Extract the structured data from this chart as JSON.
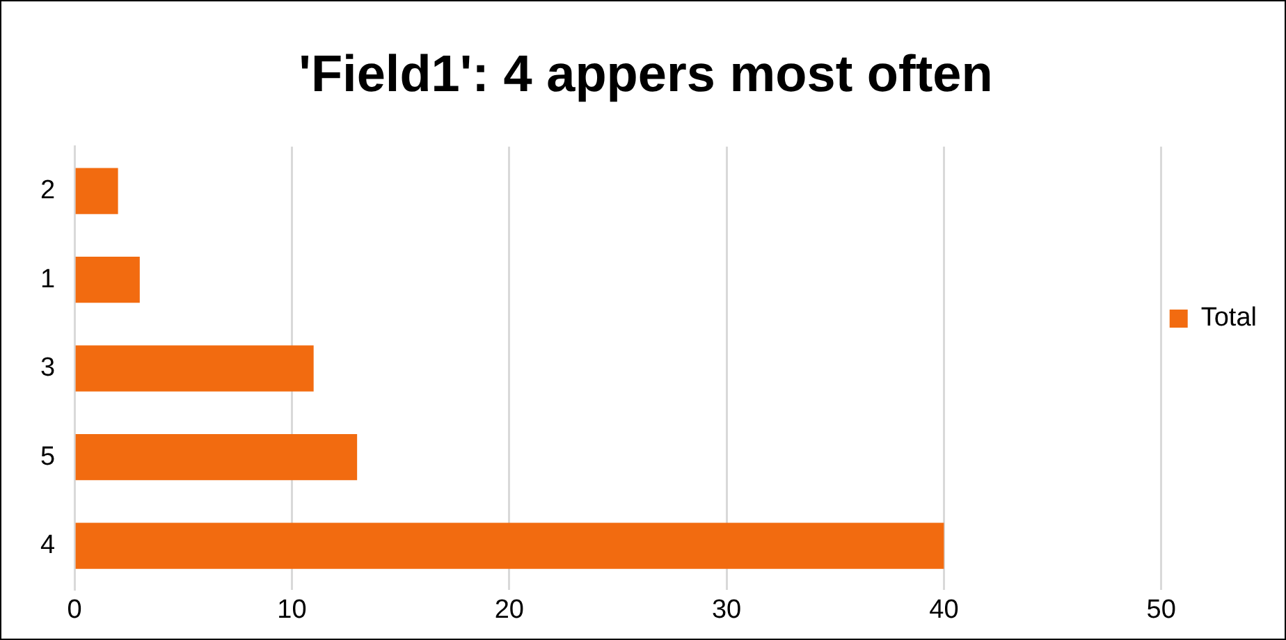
{
  "chart_data": {
    "type": "bar",
    "title": "'Field1': 4 appers most often",
    "orientation": "horizontal",
    "categories": [
      "2",
      "1",
      "3",
      "5",
      "4"
    ],
    "series": [
      {
        "name": "Total",
        "color": "#f26b10",
        "values": [
          2,
          3,
          11,
          13,
          40
        ]
      }
    ],
    "xlim": [
      0,
      50
    ],
    "xticks": [
      0,
      10,
      20,
      30,
      40,
      50
    ],
    "grid": "x",
    "legend": "right"
  }
}
